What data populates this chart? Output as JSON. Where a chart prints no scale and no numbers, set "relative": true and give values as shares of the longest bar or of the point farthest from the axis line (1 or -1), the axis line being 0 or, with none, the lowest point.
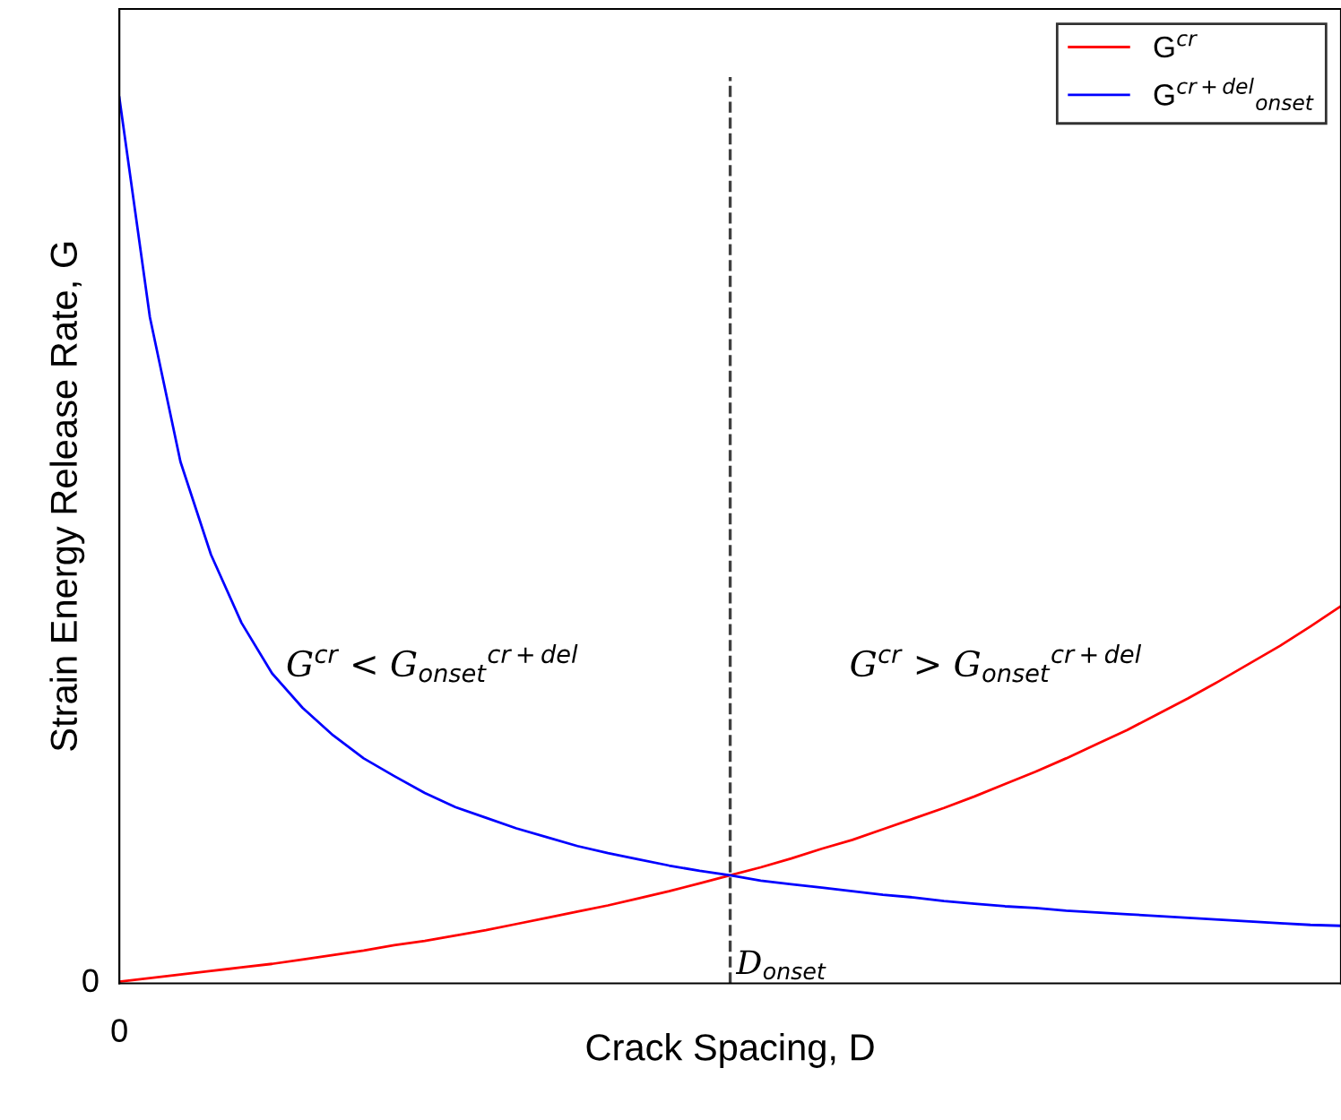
{
  "chart_data": {
    "type": "line",
    "relative": true,
    "xlabel": "Crack Spacing, D",
    "ylabel": "Strain Energy Release Rate, G",
    "categories": [
      null,
      null,
      null,
      null,
      null,
      null,
      null,
      null,
      null,
      null,
      null,
      null,
      null,
      null,
      null,
      null,
      null,
      null,
      null,
      null,
      null,
      null,
      null,
      null,
      null,
      null,
      null,
      null,
      null,
      null,
      null,
      null,
      null,
      null,
      null,
      null,
      null,
      null,
      null,
      null,
      null
    ],
    "series": [
      {
        "name": "G$^{cr}$",
        "color": "#ff0000",
        "values": [
          0.002,
          0.006,
          0.01,
          0.014,
          0.018,
          0.022,
          0.027,
          0.032,
          0.037,
          0.043,
          0.048,
          0.054,
          0.06,
          0.067,
          0.074,
          0.081,
          0.088,
          0.096,
          0.104,
          0.113,
          0.122,
          0.131,
          0.141,
          0.152,
          0.162,
          0.174,
          0.186,
          0.198,
          0.211,
          0.225,
          0.239,
          0.254,
          0.27,
          0.286,
          0.304,
          0.322,
          0.341,
          0.361,
          0.381,
          0.403,
          0.426
        ]
      },
      {
        "name": "G$^{cr+del}$$_{onset}$",
        "color": "#0000ff",
        "values": [
          1,
          0.752,
          0.589,
          0.484,
          0.407,
          0.35,
          0.311,
          0.28,
          0.254,
          0.234,
          0.215,
          0.199,
          0.187,
          0.175,
          0.165,
          0.155,
          0.147,
          0.14,
          0.133,
          0.127,
          0.122,
          0.116,
          0.112,
          0.108,
          0.104,
          0.1,
          0.097,
          0.093,
          0.09,
          0.087,
          0.085,
          0.082,
          0.08,
          0.078,
          0.076,
          0.074,
          0.072,
          0.07,
          0.068,
          0.066,
          0.065
        ]
      }
    ],
    "annotations": [
      "0",
      "0",
      "D$_{onset}$",
      "G$^{cr}$ < G$_{onset}$$^{cr+del}$",
      "G$^{cr}$ > G$_{onset}$$^{cr+del}$"
    ],
    "legend": "top right",
    "grid": false,
    "marker": "none",
    "line_style": "solid"
  }
}
